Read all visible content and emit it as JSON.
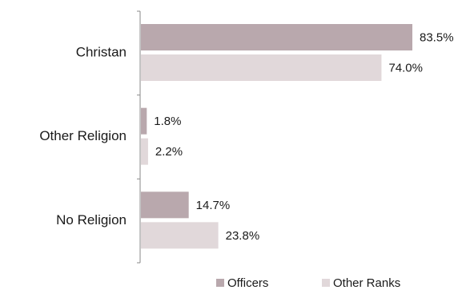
{
  "chart_data": {
    "type": "bar",
    "orientation": "horizontal",
    "categories": [
      "Christan",
      "Other Religion",
      "No Religion"
    ],
    "series": [
      {
        "name": "Officers",
        "values": [
          83.5,
          1.8,
          14.7
        ],
        "labels": [
          "83.5%",
          "1.8%",
          "14.7%"
        ],
        "color": "#b9a8ad"
      },
      {
        "name": "Other Ranks",
        "values": [
          74.0,
          2.2,
          23.8
        ],
        "labels": [
          "74.0%",
          "2.2%",
          "23.8%"
        ],
        "color": "#e1d8da"
      }
    ],
    "value_unit": "%",
    "xlim": [
      0,
      100
    ],
    "grid": false,
    "legend_position": "bottom"
  }
}
